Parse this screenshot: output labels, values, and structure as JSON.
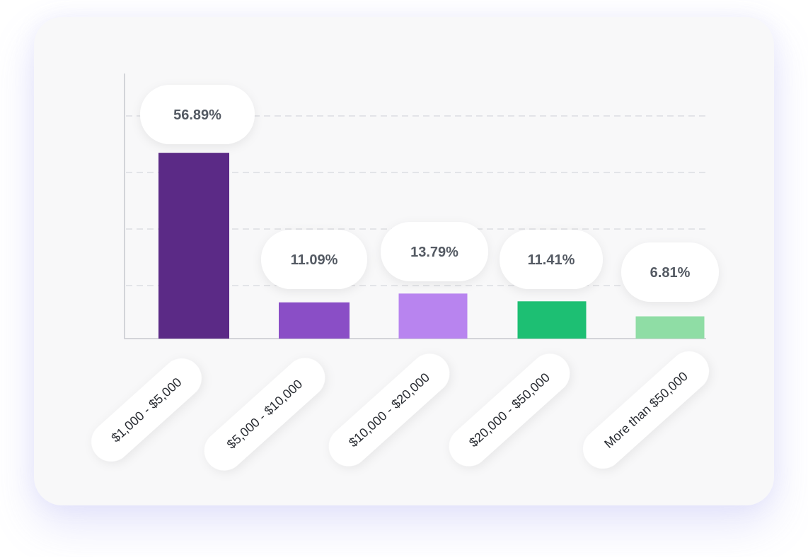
{
  "chart_data": {
    "type": "bar",
    "title": "",
    "xlabel": "",
    "ylabel": "",
    "categories": [
      "$1,000 - $5,000",
      "$5,000 - $10,000",
      "$10,000 - $20,000",
      "$20,000 - $50,000",
      "More than $50,000"
    ],
    "values": [
      56.89,
      11.09,
      13.79,
      11.41,
      6.81
    ],
    "value_labels": [
      "56.89%",
      "11.09%",
      "13.79%",
      "11.41%",
      "6.81%"
    ],
    "colors": [
      "#5b2a86",
      "#8a4ec6",
      "#b884ef",
      "#1dbf73",
      "#8fdda5"
    ],
    "ylim": [
      0,
      85
    ],
    "grid": true,
    "legend": "none"
  }
}
